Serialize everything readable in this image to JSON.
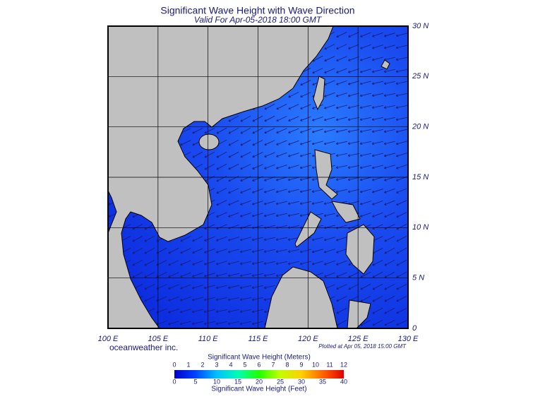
{
  "header": {
    "title": "Significant Wave Height with Wave Direction",
    "subtitle": "Valid For Apr-05-2018 18:00 GMT"
  },
  "map": {
    "lat_labels": [
      "30 N",
      "25 N",
      "20 N",
      "15 N",
      "10 N",
      "5 N",
      "0"
    ],
    "lon_labels": [
      "100 E",
      "105 E",
      "110 E",
      "115 E",
      "120 E",
      "125 E",
      "130 E"
    ]
  },
  "footer": {
    "credit": "oceanweather inc.",
    "plotted": "Plotted at Apr 05, 2018 15:00 GMT"
  },
  "colorbar": {
    "title_meters": "Significant Wave Height (Meters)",
    "meters_ticks": [
      0,
      1,
      2,
      3,
      4,
      5,
      6,
      7,
      8,
      9,
      10,
      11,
      12
    ],
    "feet_ticks": [
      0,
      5,
      10,
      15,
      20,
      25,
      30,
      35,
      40
    ],
    "title_feet": "Significant Wave Height (Feet)"
  }
}
